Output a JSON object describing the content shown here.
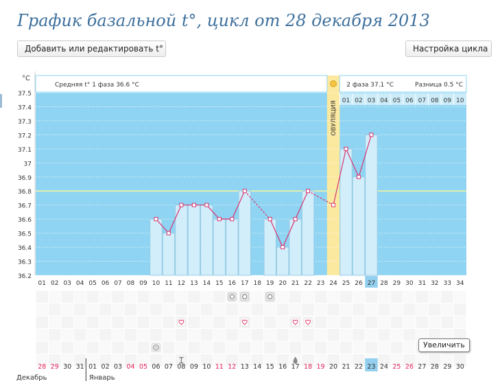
{
  "page": {
    "title": "График базальной t°, цикл от 28 декабря 2013",
    "add_button": "Добавить или редактировать t°",
    "settings_button": "Настройка цикла",
    "zoom_tooltip": "Увеличить"
  },
  "colors": {
    "sky": "#8fd4f2",
    "bar": "#d2eefb",
    "bar_border": "#97cbe3",
    "line": "#d9326f",
    "coverline": "#e2efb0",
    "ovulation": "#fce9a0",
    "weekend": "#e3245c",
    "highlight": "#93cfef"
  },
  "chart_data": {
    "type": "bar",
    "title": "График базальной t°, цикл от 28 декабря 2013",
    "ylabel": "°C",
    "ylim": [
      36.2,
      37.5
    ],
    "yticks": [
      "37.5",
      "37.4",
      "37.3",
      "37.2",
      "37.1",
      "37",
      "36.9",
      "36.8",
      "36.7",
      "36.6",
      "36.5",
      "36.4",
      "36.3",
      "36.2"
    ],
    "cycle_days": [
      "01",
      "02",
      "03",
      "04",
      "05",
      "06",
      "07",
      "08",
      "09",
      "10",
      "11",
      "12",
      "13",
      "14",
      "15",
      "16",
      "17",
      "18",
      "19",
      "20",
      "21",
      "22",
      "23",
      "24",
      "25",
      "26",
      "27",
      "28",
      "29",
      "30",
      "31",
      "32",
      "33",
      "34"
    ],
    "current_day_index": 26,
    "values": [
      null,
      null,
      null,
      null,
      null,
      null,
      null,
      null,
      null,
      36.6,
      36.5,
      36.7,
      36.7,
      36.7,
      36.6,
      36.6,
      36.8,
      null,
      36.6,
      36.4,
      36.6,
      36.8,
      null,
      36.7,
      37.1,
      36.9,
      37.2,
      null,
      null,
      null,
      null,
      null,
      null,
      null
    ],
    "coverline": 36.8,
    "ovulation_index": 23,
    "ovulation_label": "ОВУЛЯЦИЯ",
    "phase1_label": "Средняя t° 1 фаза",
    "phase1_value": "36.6 °C",
    "phase2_label": "2 фаза",
    "phase2_value": "37.1 °C",
    "diff_label": "Разница",
    "diff_value": "0.5 °C",
    "phase2_days": [
      "01",
      "02",
      "03",
      "04",
      "05",
      "06",
      "07",
      "08",
      "09",
      "10"
    ],
    "calendar_dates": [
      "28",
      "29",
      "30",
      "31",
      "01",
      "02",
      "03",
      "04",
      "05",
      "06",
      "07",
      "08",
      "09",
      "10",
      "11",
      "12",
      "13",
      "14",
      "15",
      "16",
      "17",
      "18",
      "19",
      "20",
      "21",
      "22",
      "23",
      "24",
      "25",
      "26",
      "27",
      "28",
      "29",
      "30"
    ],
    "weekend_indices": [
      0,
      1,
      7,
      8,
      14,
      15,
      21,
      22,
      28,
      29
    ],
    "today_calendar_index": 26,
    "months": [
      {
        "label": "Декабрь",
        "start_index": 0
      },
      {
        "label": "Январь",
        "start_index": 4
      }
    ],
    "symbols": [
      {
        "index": 15,
        "row": 0,
        "icon": "eye-icon"
      },
      {
        "index": 16,
        "row": 0,
        "icon": "eye-icon"
      },
      {
        "index": 18,
        "row": 0,
        "icon": "eye-icon"
      },
      {
        "index": 11,
        "row": 2,
        "icon": "heart-icon"
      },
      {
        "index": 16,
        "row": 2,
        "icon": "heart-icon"
      },
      {
        "index": 20,
        "row": 2,
        "icon": "heart-icon"
      },
      {
        "index": 21,
        "row": 2,
        "icon": "heart-icon"
      },
      {
        "index": 9,
        "row": 4,
        "icon": "pill-icon"
      },
      {
        "index": 11,
        "row": 5,
        "icon": "test-icon"
      },
      {
        "index": 20,
        "row": 5,
        "icon": "drop-icon"
      }
    ]
  }
}
